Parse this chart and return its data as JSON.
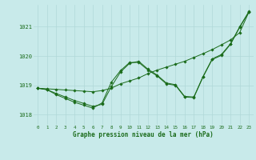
{
  "title": "Graphe pression niveau de la mer (hPa)",
  "bg_color": "#c8eaea",
  "grid_color": "#b0d8d8",
  "line_color": "#1a6b1a",
  "xlim": [
    -0.5,
    23.5
  ],
  "ylim": [
    1017.65,
    1021.75
  ],
  "yticks": [
    1018,
    1019,
    1020,
    1021
  ],
  "xticks": [
    0,
    1,
    2,
    3,
    4,
    5,
    6,
    7,
    8,
    9,
    10,
    11,
    12,
    13,
    14,
    15,
    16,
    17,
    18,
    19,
    20,
    21,
    22,
    23
  ],
  "series1_x": [
    0,
    1,
    2,
    3,
    4,
    5,
    6,
    7,
    8,
    9,
    10,
    11,
    12,
    13,
    14,
    15,
    16,
    17,
    18,
    19,
    20,
    21,
    22,
    23
  ],
  "series1_y": [
    1018.9,
    1018.88,
    1018.86,
    1018.84,
    1018.82,
    1018.8,
    1018.78,
    1018.82,
    1018.9,
    1019.05,
    1019.15,
    1019.25,
    1019.4,
    1019.52,
    1019.62,
    1019.72,
    1019.82,
    1019.95,
    1020.08,
    1020.22,
    1020.38,
    1020.55,
    1020.8,
    1021.5
  ],
  "series2_x": [
    0,
    1,
    2,
    3,
    4,
    5,
    6,
    7,
    8,
    9,
    10,
    11,
    12,
    13,
    14,
    15,
    16,
    17,
    18,
    19,
    20,
    21,
    22,
    23
  ],
  "series2_y": [
    1018.9,
    1018.85,
    1018.72,
    1018.6,
    1018.48,
    1018.38,
    1018.28,
    1018.35,
    1018.95,
    1019.45,
    1019.75,
    1019.82,
    1019.55,
    1019.35,
    1019.08,
    1019.02,
    1018.62,
    1018.6,
    1019.3,
    1019.9,
    1020.05,
    1020.42,
    1021.0,
    1021.52
  ],
  "series3_x": [
    0,
    1,
    2,
    3,
    4,
    5,
    6,
    7,
    8,
    9,
    10,
    11,
    12,
    13,
    14,
    15,
    16,
    17,
    18,
    19,
    20,
    21,
    22,
    23
  ],
  "series3_y": [
    1018.9,
    1018.85,
    1018.68,
    1018.55,
    1018.42,
    1018.32,
    1018.22,
    1018.4,
    1019.1,
    1019.5,
    1019.78,
    1019.78,
    1019.52,
    1019.32,
    1019.05,
    1019.0,
    1018.6,
    1018.58,
    1019.28,
    1019.88,
    1020.02,
    1020.4,
    1020.98,
    1021.5
  ]
}
